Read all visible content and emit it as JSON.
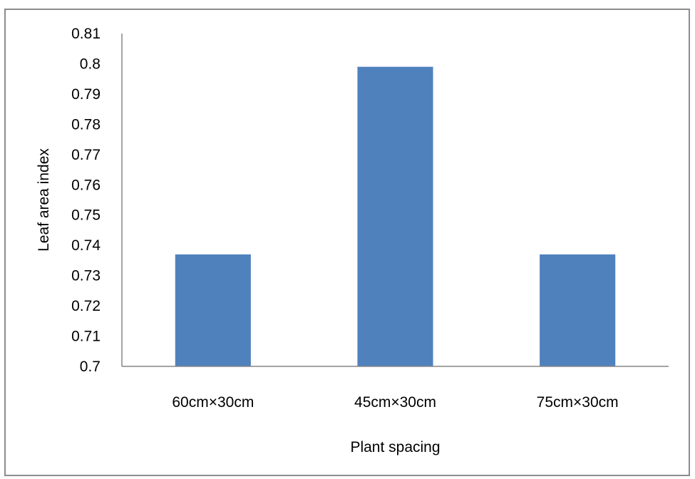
{
  "chart_data": {
    "type": "bar",
    "title": "",
    "xlabel": "Plant spacing",
    "ylabel": "Leaf  area index",
    "categories": [
      "60cm×30cm",
      "45cm×30cm",
      "75cm×30cm"
    ],
    "values": [
      0.737,
      0.799,
      0.737
    ],
    "ylim": [
      0.7,
      0.81
    ],
    "y_ticks": [
      "0.7",
      "0.71",
      "0.72",
      "0.73",
      "0.74",
      "0.75",
      "0.76",
      "0.77",
      "0.78",
      "0.79",
      "0.8",
      "0.81"
    ],
    "grid": false,
    "legend": "none",
    "bar_color": "#4f81bd",
    "axis_color": "#868686",
    "frame_color": "#8c8c8c"
  }
}
